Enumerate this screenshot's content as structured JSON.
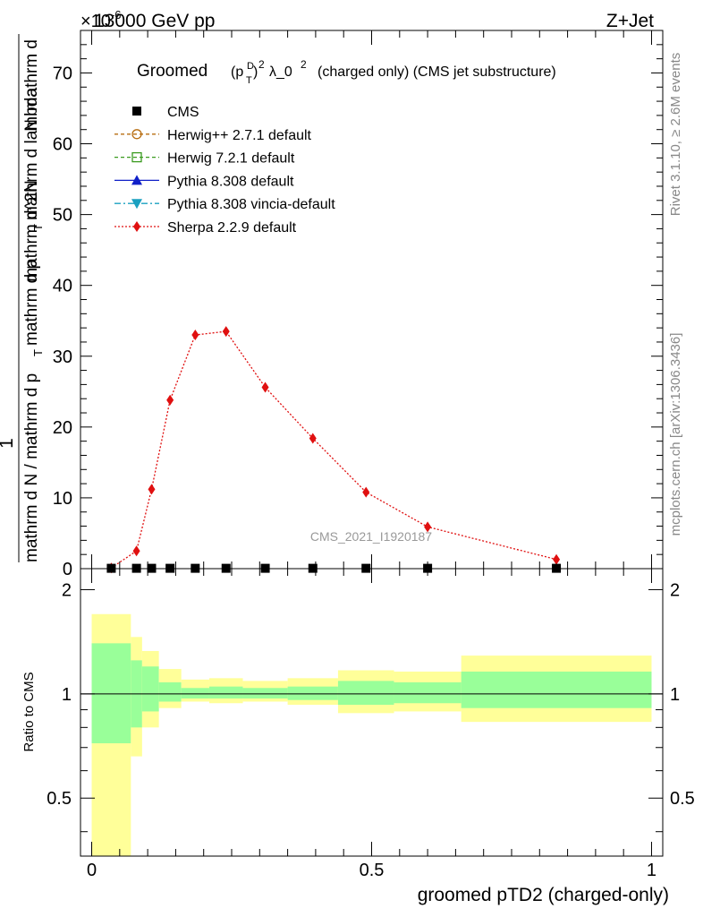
{
  "header": {
    "energy_label": "13000 GeV pp",
    "process_label": "Z+Jet",
    "y_multiplier": "×10",
    "y_multiplier_exp": "-6"
  },
  "side_labels": {
    "rivet": "Rivet 3.1.10, ≥ 2.6M events",
    "mcplots": "mcplots.cern.ch [arXiv:1306.3436]"
  },
  "watermark": "CMS_2021_I1920187",
  "chart_data": [
    {
      "type": "line",
      "title": "Groomed (p_T^D)^2 λ_0^2  (charged only) (CMS jet substructure)",
      "title_parts": {
        "pre": "Groomed",
        "p": "(p",
        "sup_D": "D",
        "sub_T": "T",
        "close": ")",
        "sq": "2",
        "lambda": "λ_0",
        "sq2": "2",
        "post": "(charged only) (CMS jet substructure)"
      },
      "ylabel": {
        "one": "1",
        "denominator": "mathrm d N / mathrm d p_T mathrm d p_T mathrm d lambda",
        "numerator": "mathrm d^2N",
        "upper_lines": [
          "mathrm d",
          "N"
        ],
        "lower_lines": [
          "mathrm d N / mathrm d p",
          "T",
          "mathrm d p",
          "T",
          "mathrm d lambda"
        ]
      },
      "ylim": [
        0,
        76
      ],
      "yticks": [
        0,
        10,
        20,
        30,
        40,
        50,
        60,
        70
      ],
      "xlim": [
        -0.02,
        1.02
      ],
      "legend_position": "top-left",
      "legend": [
        {
          "label": "CMS",
          "color": "#000000",
          "marker": "square-filled",
          "line": "none"
        },
        {
          "label": "Herwig++ 2.7.1 default",
          "color": "#b86e12",
          "marker": "circle-open",
          "line": "dashed"
        },
        {
          "label": "Herwig 7.2.1 default",
          "color": "#3a9a1f",
          "marker": "square-open",
          "line": "dashed"
        },
        {
          "label": "Pythia 8.308 default",
          "color": "#1020c8",
          "marker": "triangle-up",
          "line": "solid"
        },
        {
          "label": "Pythia 8.308 vincia-default",
          "color": "#1aa0c0",
          "marker": "triangle-down",
          "line": "dashdot"
        },
        {
          "label": "Sherpa 2.2.9 default",
          "color": "#e01010",
          "marker": "diamond",
          "line": "dotted"
        }
      ],
      "series": [
        {
          "name": "Sherpa 2.2.9 default",
          "color": "#e01010",
          "x": [
            0.035,
            0.08,
            0.107,
            0.14,
            0.185,
            0.24,
            0.31,
            0.395,
            0.49,
            0.6,
            0.83
          ],
          "y": [
            0.1,
            2.5,
            11.2,
            23.8,
            33.0,
            33.5,
            25.6,
            18.4,
            10.8,
            5.9,
            1.3
          ]
        },
        {
          "name": "CMS",
          "color": "#000000",
          "x": [
            0.035,
            0.08,
            0.107,
            0.14,
            0.185,
            0.24,
            0.31,
            0.395,
            0.49,
            0.6,
            0.83
          ],
          "y": [
            0.05,
            0.05,
            0.05,
            0.05,
            0.05,
            0.05,
            0.05,
            0.05,
            0.05,
            0.05,
            0.05
          ]
        }
      ]
    },
    {
      "type": "area",
      "ylabel": "Ratio to CMS",
      "xlabel": "groomed pTD2 (charged-only)",
      "ylim": [
        0.34,
        2.3
      ],
      "yticks": [
        0.5,
        1,
        2
      ],
      "xticks": [
        0,
        0.5,
        1
      ],
      "xlim": [
        -0.02,
        1.02
      ],
      "reference_line": 1,
      "bands": {
        "yellow_color": "#ffff99",
        "green_color": "#99ff99",
        "bins": [
          {
            "x0": 0.0,
            "x1": 0.07,
            "y_lo": 0.34,
            "y_hi": 1.7,
            "g_lo": 0.72,
            "g_hi": 1.4
          },
          {
            "x0": 0.07,
            "x1": 0.09,
            "y_lo": 0.66,
            "y_hi": 1.46,
            "g_lo": 0.8,
            "g_hi": 1.25
          },
          {
            "x0": 0.09,
            "x1": 0.12,
            "y_lo": 0.8,
            "y_hi": 1.33,
            "g_lo": 0.89,
            "g_hi": 1.2
          },
          {
            "x0": 0.12,
            "x1": 0.16,
            "y_lo": 0.91,
            "y_hi": 1.18,
            "g_lo": 0.95,
            "g_hi": 1.08
          },
          {
            "x0": 0.16,
            "x1": 0.21,
            "y_lo": 0.95,
            "y_hi": 1.1,
            "g_lo": 0.97,
            "g_hi": 1.04
          },
          {
            "x0": 0.21,
            "x1": 0.27,
            "y_lo": 0.94,
            "y_hi": 1.11,
            "g_lo": 0.97,
            "g_hi": 1.05
          },
          {
            "x0": 0.27,
            "x1": 0.35,
            "y_lo": 0.95,
            "y_hi": 1.09,
            "g_lo": 0.97,
            "g_hi": 1.04
          },
          {
            "x0": 0.35,
            "x1": 0.44,
            "y_lo": 0.93,
            "y_hi": 1.11,
            "g_lo": 0.96,
            "g_hi": 1.05
          },
          {
            "x0": 0.44,
            "x1": 0.54,
            "y_lo": 0.88,
            "y_hi": 1.17,
            "g_lo": 0.93,
            "g_hi": 1.09
          },
          {
            "x0": 0.54,
            "x1": 0.66,
            "y_lo": 0.89,
            "y_hi": 1.16,
            "g_lo": 0.94,
            "g_hi": 1.08
          },
          {
            "x0": 0.66,
            "x1": 1.0,
            "y_lo": 0.83,
            "y_hi": 1.29,
            "g_lo": 0.91,
            "g_hi": 1.16
          }
        ]
      }
    }
  ]
}
